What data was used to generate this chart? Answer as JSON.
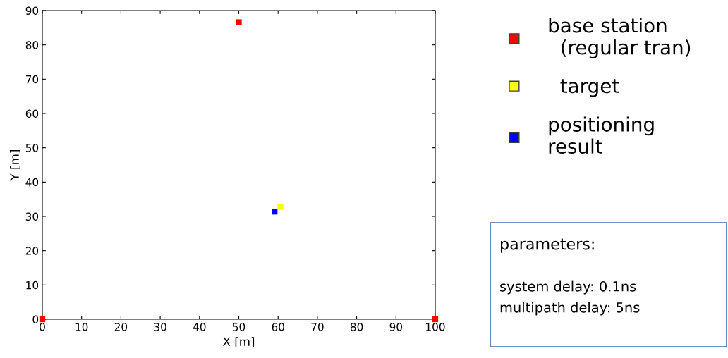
{
  "chart_data": {
    "type": "scatter",
    "xlabel": "X [m]",
    "ylabel": "Y [m]",
    "xlim": [
      0,
      100
    ],
    "ylim": [
      0,
      90
    ],
    "xticks": [
      0,
      10,
      20,
      30,
      40,
      50,
      60,
      70,
      80,
      90,
      100
    ],
    "yticks": [
      0,
      10,
      20,
      30,
      40,
      50,
      60,
      70,
      80,
      90
    ],
    "grid": false,
    "legend": "right",
    "marker": "square",
    "series": [
      {
        "name": "base station\n  (regular tran)",
        "color": "#ff0000",
        "x": [
          0,
          100,
          50
        ],
        "values": [
          0,
          0,
          86.6
        ]
      },
      {
        "name": "  target",
        "color": "#ffff00",
        "x": [
          60.6
        ],
        "values": [
          32.8
        ]
      },
      {
        "name": "positioning\nresult",
        "color": "#0000ff",
        "x": [
          59.1
        ],
        "values": [
          31.4
        ]
      }
    ],
    "annotations": [
      "parameters:",
      "system delay: 0.1ns",
      "multipath delay: 5ns"
    ]
  }
}
